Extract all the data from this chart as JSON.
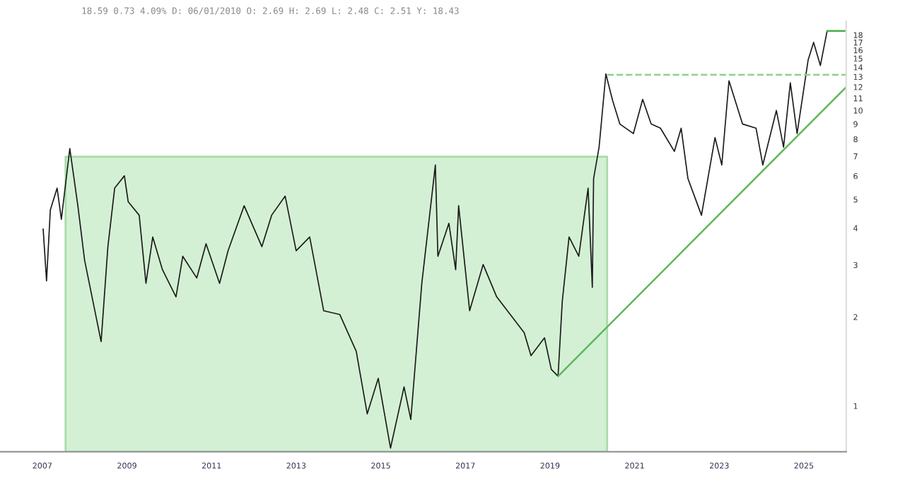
{
  "chart_data": {
    "type": "line",
    "annotations": [
      "18.59 0.73 4.09% D: 06/01/2010 O: 2.69 H: 2.69 L: 2.48 C: 2.51 Y: 18.43"
    ],
    "log": true,
    "grid": false,
    "legend": false,
    "marker": "none",
    "xlim": [
      2006,
      2026
    ],
    "xticks": [
      2007,
      2009,
      2011,
      2013,
      2015,
      2017,
      2019,
      2021,
      2023,
      2025
    ],
    "ylim": [
      0.7,
      20
    ],
    "yticks": [
      1,
      2,
      3,
      4,
      5,
      6,
      7,
      8,
      9,
      10,
      11,
      12,
      13,
      14,
      15,
      16,
      17,
      18
    ],
    "series": [
      {
        "type": "area",
        "color": "#d4f0d4",
        "x": [
          2007.55,
          2020.35
        ],
        "values": [
          6.97,
          6.97
        ]
      },
      {
        "color": "#1a1a1a",
        "line_style": "solid",
        "x": [
          2007.02,
          2007.1,
          2007.19,
          2007.35,
          2007.45,
          2007.65,
          2007.84,
          2008.0,
          2008.39,
          2008.55,
          2008.71,
          2008.94,
          2009.03,
          2009.29,
          2009.45,
          2009.61,
          2009.84,
          2010.16,
          2010.32,
          2010.65,
          2010.87,
          2011.19,
          2011.39,
          2011.77,
          2012.19,
          2012.42,
          2012.74,
          2013.0,
          2013.32,
          2013.65,
          2014.03,
          2014.42,
          2014.68,
          2014.94,
          2015.23,
          2015.55,
          2015.71,
          2015.97,
          2016.29,
          2016.35,
          2016.61,
          2016.77,
          2016.84,
          2017.1,
          2017.42,
          2017.74,
          2018.06,
          2018.39,
          2018.55,
          2018.87,
          2019.03,
          2019.19,
          2019.29,
          2019.45,
          2019.68,
          2019.9,
          2020.0,
          2020.03,
          2020.16,
          2020.32,
          2020.48,
          2020.65,
          2020.97,
          2021.19,
          2021.39,
          2021.61,
          2021.94,
          2022.1,
          2022.26,
          2022.58,
          2022.9,
          2023.06,
          2023.23,
          2023.55,
          2023.87,
          2024.03,
          2024.35,
          2024.52,
          2024.68,
          2024.84,
          2025.1,
          2025.23,
          2025.39,
          2025.55
        ],
        "values": [
          3.97,
          2.65,
          4.61,
          5.46,
          4.28,
          7.43,
          4.76,
          3.11,
          1.65,
          3.46,
          5.46,
          6.01,
          4.91,
          4.42,
          2.6,
          3.73,
          2.89,
          2.34,
          3.21,
          2.71,
          3.54,
          2.6,
          3.35,
          4.76,
          3.46,
          4.42,
          5.13,
          3.35,
          3.73,
          2.1,
          2.04,
          1.53,
          0.94,
          1.24,
          0.72,
          1.16,
          0.9,
          2.6,
          6.54,
          3.21,
          4.15,
          2.89,
          4.76,
          2.1,
          3.01,
          2.34,
          2.04,
          1.77,
          1.48,
          1.7,
          1.33,
          1.26,
          2.26,
          3.73,
          3.21,
          5.46,
          2.52,
          5.88,
          7.51,
          13.3,
          10.8,
          9.0,
          8.35,
          10.9,
          9.0,
          8.71,
          7.27,
          8.71,
          5.88,
          4.42,
          8.09,
          6.54,
          12.6,
          9.0,
          8.71,
          6.54,
          10.0,
          7.51,
          12.4,
          8.35,
          14.8,
          17.0,
          14.2,
          18.59
        ]
      },
      {
        "type": "line",
        "color": "#5cb85c",
        "line_style": "solid",
        "x": [
          2019.19,
          2026
        ],
        "values": [
          1.26,
          12.0
        ]
      },
      {
        "type": "line",
        "color": "#8fd18f",
        "line_style": "dashed",
        "x": [
          2020.35,
          2026
        ],
        "values": [
          13.2,
          13.2
        ]
      },
      {
        "type": "line",
        "color": "#4cae4c",
        "line_style": "solid",
        "x": [
          2025.55,
          2026
        ],
        "values": [
          18.59,
          18.59
        ]
      }
    ]
  }
}
